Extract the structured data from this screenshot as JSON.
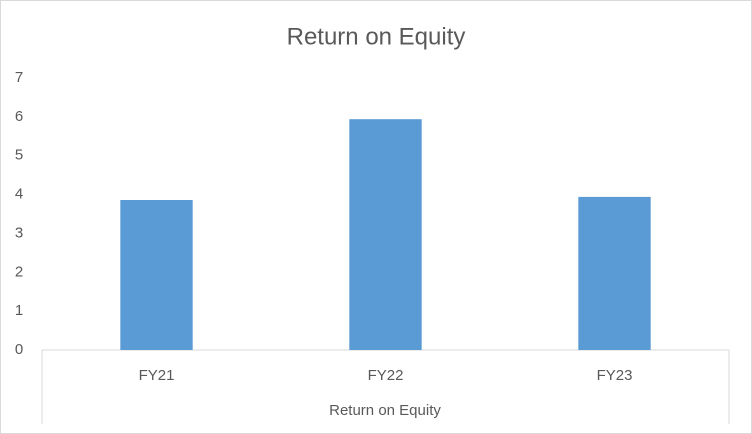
{
  "chart_data": {
    "type": "bar",
    "title": "Return on Equity",
    "x_label": "Return on Equity",
    "categories": [
      "FY21",
      "FY22",
      "FY23"
    ],
    "values": [
      3.86,
      5.94,
      3.94
    ],
    "color": "#5b9bd5",
    "ylim": [
      0,
      7
    ],
    "yticks": [
      0,
      1,
      2,
      3,
      4,
      5,
      6,
      7
    ],
    "grid": false
  }
}
